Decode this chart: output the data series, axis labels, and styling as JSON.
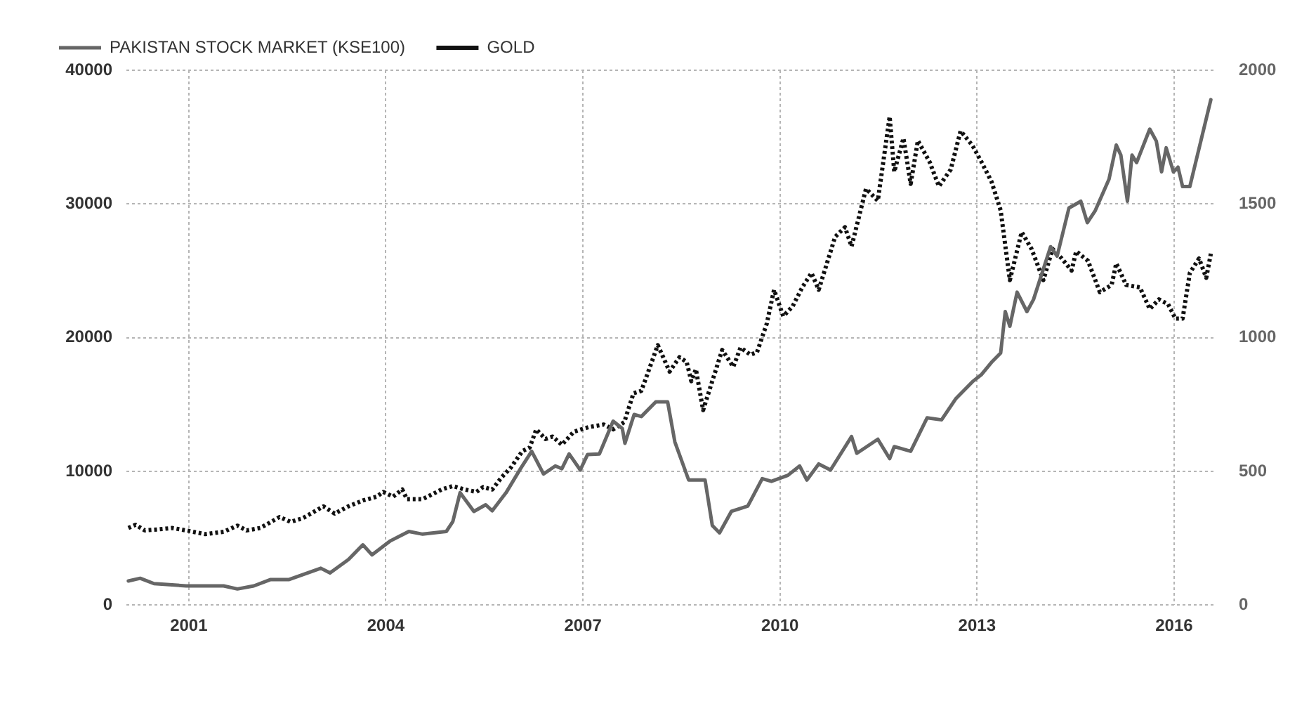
{
  "chart_data": {
    "type": "line",
    "xlim": [
      2000.05,
      2016.6
    ],
    "xticks": [
      2001,
      2004,
      2007,
      2010,
      2013,
      2016
    ],
    "ylim": [
      0,
      40000
    ],
    "yticks": [
      0,
      10000,
      20000,
      30000,
      40000
    ],
    "y2lim": [
      0,
      2000
    ],
    "y2ticks": [
      0,
      500,
      1000,
      1500,
      2000
    ],
    "grid": true,
    "legend": "top left",
    "series": [
      {
        "name": "PAKISTAN STOCK MARKET (KSE100)",
        "color": "#666666",
        "line_style": "solid",
        "x": [
          2000.08,
          2000.26,
          2000.47,
          2000.96,
          2001.53,
          2001.74,
          2001.99,
          2002.24,
          2002.52,
          2003.01,
          2003.15,
          2003.43,
          2003.65,
          2003.79,
          2004.07,
          2004.35,
          2004.56,
          2004.92,
          2005.02,
          2005.13,
          2005.34,
          2005.52,
          2005.62,
          2005.83,
          2006.05,
          2006.22,
          2006.4,
          2006.58,
          2006.68,
          2006.79,
          2006.96,
          2007.07,
          2007.25,
          2007.46,
          2007.6,
          2007.64,
          2007.78,
          2007.89,
          2008.11,
          2008.29,
          2008.4,
          2008.61,
          2008.86,
          2008.97,
          2009.08,
          2009.26,
          2009.51,
          2009.73,
          2009.87,
          2010.12,
          2010.3,
          2010.41,
          2010.59,
          2010.77,
          2011.09,
          2011.17,
          2011.49,
          2011.67,
          2011.74,
          2011.99,
          2012.24,
          2012.46,
          2012.68,
          2012.93,
          2013.07,
          2013.22,
          2013.36,
          2013.43,
          2013.5,
          2013.61,
          2013.76,
          2013.86,
          2014.12,
          2014.22,
          2014.4,
          2014.58,
          2014.68,
          2014.8,
          2015.01,
          2015.12,
          2015.19,
          2015.29,
          2015.36,
          2015.43,
          2015.63,
          2015.73,
          2015.81,
          2015.88,
          2015.99,
          2016.06,
          2016.13,
          2016.24,
          2016.56
        ],
        "values": [
          1800,
          2000,
          1600,
          1430,
          1430,
          1200,
          1430,
          1900,
          1900,
          2750,
          2400,
          3400,
          4500,
          3750,
          4800,
          5500,
          5300,
          5500,
          6250,
          8400,
          7000,
          7500,
          7050,
          8400,
          10200,
          11500,
          9800,
          10400,
          10200,
          11300,
          10100,
          11250,
          11300,
          13750,
          13200,
          12100,
          14250,
          14100,
          15200,
          15200,
          12200,
          9350,
          9350,
          5950,
          5400,
          7000,
          7400,
          9450,
          9250,
          9700,
          10400,
          9350,
          10550,
          10100,
          12600,
          11350,
          12400,
          10950,
          11850,
          11500,
          14000,
          13850,
          15450,
          16700,
          17250,
          18150,
          18850,
          21950,
          20850,
          23400,
          21950,
          22850,
          26800,
          26100,
          29700,
          30200,
          28600,
          29500,
          31850,
          34400,
          33650,
          30200,
          33650,
          33100,
          35600,
          34700,
          32400,
          34200,
          32400,
          32750,
          31300,
          31300,
          37800
        ]
      },
      {
        "name": "GOLD",
        "color": "#111111",
        "line_style": "dotted",
        "axis": "y2",
        "x": [
          2000.08,
          2000.19,
          2000.33,
          2000.54,
          2000.75,
          2000.96,
          2001.25,
          2001.53,
          2001.74,
          2001.88,
          2002.09,
          2002.38,
          2002.55,
          2002.73,
          2003.05,
          2003.22,
          2003.43,
          2003.65,
          2003.86,
          2003.96,
          2004.11,
          2004.25,
          2004.32,
          2004.56,
          2004.85,
          2005.02,
          2005.2,
          2005.38,
          2005.48,
          2005.62,
          2005.76,
          2005.9,
          2006.08,
          2006.19,
          2006.29,
          2006.43,
          2006.54,
          2006.68,
          2006.86,
          2007.1,
          2007.32,
          2007.46,
          2007.63,
          2007.77,
          2007.89,
          2008.14,
          2008.32,
          2008.47,
          2008.58,
          2008.65,
          2008.72,
          2008.83,
          2009.12,
          2009.29,
          2009.4,
          2009.55,
          2009.65,
          2009.8,
          2009.91,
          2010.05,
          2010.19,
          2010.34,
          2010.48,
          2010.59,
          2010.84,
          2010.99,
          2011.09,
          2011.31,
          2011.49,
          2011.67,
          2011.74,
          2011.88,
          2011.99,
          2012.1,
          2012.28,
          2012.42,
          2012.6,
          2012.75,
          2012.93,
          2013.07,
          2013.22,
          2013.36,
          2013.5,
          2013.68,
          2013.83,
          2014.01,
          2014.15,
          2014.29,
          2014.44,
          2014.51,
          2014.69,
          2014.87,
          2015.05,
          2015.12,
          2015.27,
          2015.48,
          2015.63,
          2015.77,
          2015.91,
          2016.02,
          2016.13,
          2016.24,
          2016.38,
          2016.49,
          2016.56
        ],
        "values": [
          288,
          300,
          279,
          283,
          288,
          279,
          265,
          274,
          297,
          279,
          288,
          329,
          311,
          324,
          369,
          342,
          369,
          391,
          405,
          423,
          405,
          432,
          396,
          396,
          432,
          445,
          432,
          423,
          441,
          432,
          477,
          513,
          576,
          589,
          657,
          621,
          630,
          599,
          648,
          666,
          675,
          657,
          684,
          792,
          801,
          972,
          873,
          927,
          909,
          837,
          882,
          729,
          954,
          891,
          963,
          936,
          945,
          1053,
          1179,
          1080,
          1116,
          1188,
          1242,
          1179,
          1377,
          1413,
          1341,
          1557,
          1512,
          1827,
          1620,
          1746,
          1575,
          1737,
          1656,
          1566,
          1629,
          1773,
          1719,
          1656,
          1584,
          1476,
          1215,
          1395,
          1332,
          1215,
          1332,
          1296,
          1251,
          1323,
          1287,
          1170,
          1197,
          1278,
          1197,
          1188,
          1107,
          1143,
          1125,
          1071,
          1071,
          1242,
          1296,
          1224,
          1314
        ]
      }
    ]
  }
}
